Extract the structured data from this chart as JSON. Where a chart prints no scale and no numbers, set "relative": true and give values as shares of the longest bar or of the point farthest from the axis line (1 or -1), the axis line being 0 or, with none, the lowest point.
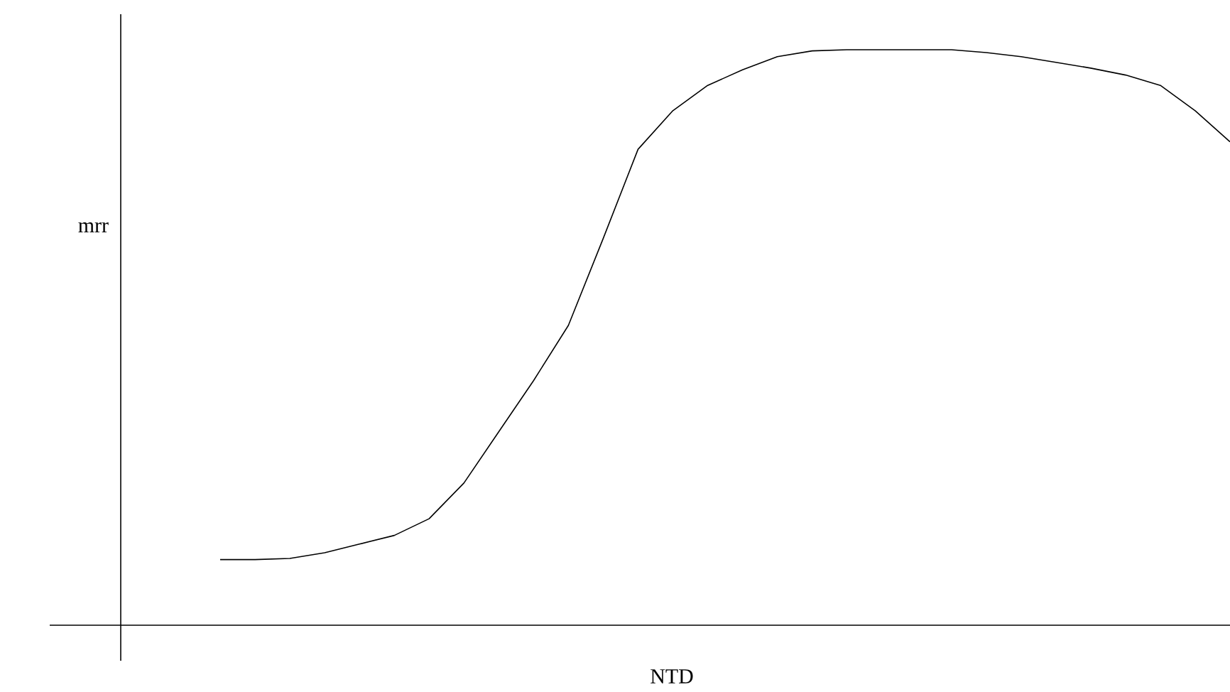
{
  "chart_data": {
    "type": "line",
    "relative": true,
    "xlabel": "NTD",
    "ylabel": "mrr",
    "color": "#000000",
    "marker": "none",
    "categories": [
      null,
      null,
      null,
      null,
      null,
      null,
      null,
      null,
      null,
      null,
      null,
      null,
      null,
      null,
      null,
      null,
      null,
      null,
      null,
      null,
      null,
      null,
      null,
      null,
      null,
      null,
      null,
      null,
      null,
      null
    ],
    "values": [
      0.114,
      0.114,
      0.116,
      0.126,
      0.141,
      0.156,
      0.185,
      0.247,
      0.336,
      0.425,
      0.521,
      0.672,
      0.827,
      0.894,
      0.938,
      0.965,
      0.988,
      0.998,
      1,
      1,
      1,
      1,
      0.995,
      0.988,
      0.978,
      0.968,
      0.956,
      0.938,
      0.894,
      0.84
    ]
  }
}
